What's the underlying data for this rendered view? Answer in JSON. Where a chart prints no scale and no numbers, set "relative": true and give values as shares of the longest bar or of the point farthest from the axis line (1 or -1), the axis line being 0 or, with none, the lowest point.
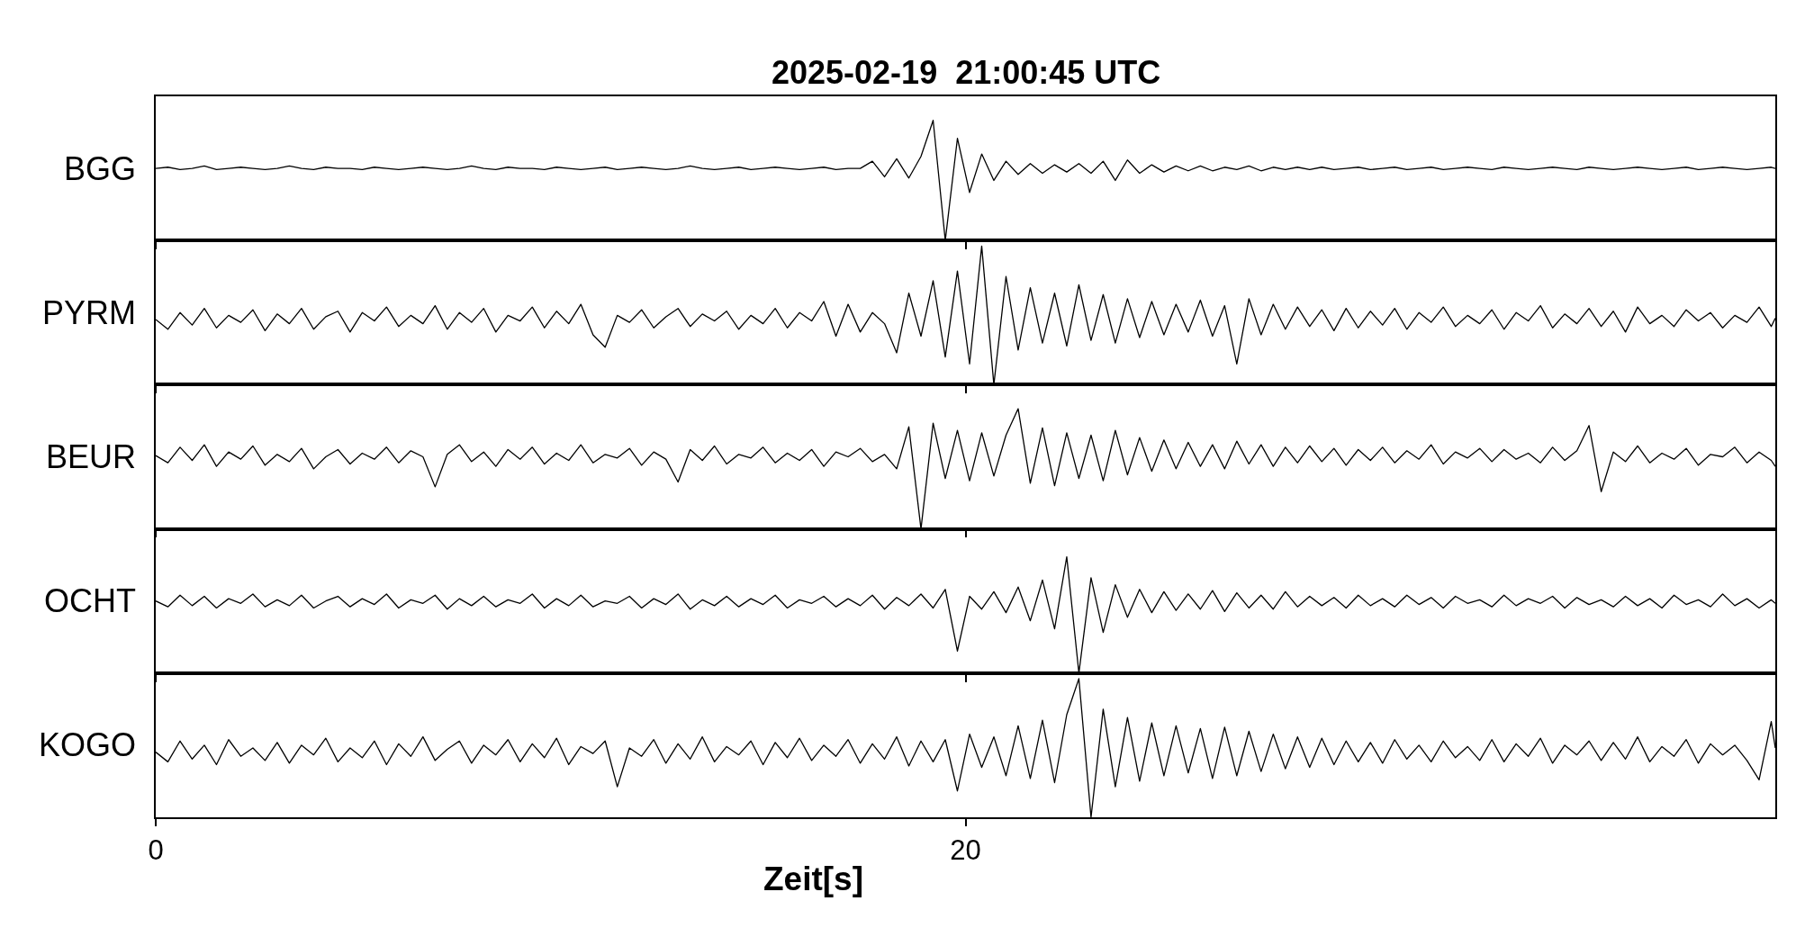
{
  "chart_data": [
    {
      "type": "line",
      "relative": true,
      "title": "2025-02-19  21:00:45 UTC",
      "ylabel": "BGG",
      "color": "#000000",
      "xlim": [
        0,
        40
      ],
      "xticks": [
        0,
        20
      ],
      "tick_labels": false,
      "x": [
        0,
        0.3,
        0.6,
        0.9,
        1.2,
        1.5,
        1.8,
        2.1,
        2.4,
        2.7,
        3,
        3.3,
        3.6,
        3.9,
        4.2,
        4.5,
        4.8,
        5.1,
        5.4,
        5.7,
        6,
        6.3,
        6.6,
        6.9,
        7.2,
        7.5,
        7.8,
        8.1,
        8.4,
        8.7,
        9,
        9.3,
        9.6,
        9.9,
        10.2,
        10.5,
        10.8,
        11.1,
        11.4,
        11.7,
        12,
        12.3,
        12.6,
        12.9,
        13.2,
        13.5,
        13.8,
        14.1,
        14.4,
        14.7,
        15,
        15.3,
        15.6,
        15.9,
        16.2,
        16.5,
        16.8,
        17.1,
        17.4,
        17.7,
        18,
        18.3,
        18.6,
        18.9,
        19.2,
        19.5,
        19.8,
        20.1,
        20.4,
        20.7,
        21,
        21.3,
        21.6,
        21.9,
        22.2,
        22.5,
        22.8,
        23.1,
        23.4,
        23.7,
        24,
        24.3,
        24.6,
        24.9,
        25.2,
        25.5,
        25.8,
        26.1,
        26.4,
        26.7,
        27,
        27.3,
        27.6,
        27.9,
        28.2,
        28.5,
        28.8,
        29.1,
        29.4,
        29.7,
        30,
        30.3,
        30.6,
        30.9,
        31.2,
        31.5,
        31.8,
        32.1,
        32.4,
        32.7,
        33,
        33.3,
        33.6,
        33.9,
        34.2,
        34.5,
        34.8,
        35.1,
        35.4,
        35.7,
        36,
        36.3,
        36.6,
        36.9,
        37.2,
        37.5,
        37.8,
        38.1,
        38.4,
        38.7,
        39,
        39.3,
        39.6,
        39.9,
        40
      ],
      "values": [
        0.6,
        0.61,
        0.59,
        0.6,
        0.62,
        0.59,
        0.6,
        0.61,
        0.6,
        0.59,
        0.6,
        0.62,
        0.6,
        0.59,
        0.61,
        0.6,
        0.6,
        0.59,
        0.61,
        0.6,
        0.59,
        0.6,
        0.61,
        0.6,
        0.59,
        0.6,
        0.62,
        0.6,
        0.59,
        0.61,
        0.6,
        0.6,
        0.59,
        0.61,
        0.6,
        0.59,
        0.6,
        0.61,
        0.59,
        0.6,
        0.61,
        0.6,
        0.59,
        0.6,
        0.62,
        0.6,
        0.59,
        0.6,
        0.61,
        0.59,
        0.6,
        0.61,
        0.6,
        0.59,
        0.6,
        0.61,
        0.59,
        0.6,
        0.6,
        0.66,
        0.53,
        0.68,
        0.52,
        0.7,
        1.0,
        0.0,
        0.85,
        0.4,
        0.72,
        0.5,
        0.66,
        0.55,
        0.64,
        0.56,
        0.63,
        0.57,
        0.64,
        0.56,
        0.66,
        0.5,
        0.67,
        0.56,
        0.63,
        0.57,
        0.62,
        0.58,
        0.62,
        0.58,
        0.61,
        0.59,
        0.62,
        0.58,
        0.61,
        0.59,
        0.61,
        0.59,
        0.61,
        0.59,
        0.6,
        0.61,
        0.59,
        0.6,
        0.61,
        0.59,
        0.6,
        0.61,
        0.59,
        0.6,
        0.61,
        0.6,
        0.59,
        0.61,
        0.6,
        0.59,
        0.6,
        0.61,
        0.6,
        0.59,
        0.61,
        0.6,
        0.59,
        0.6,
        0.61,
        0.6,
        0.59,
        0.6,
        0.61,
        0.59,
        0.6,
        0.61,
        0.6,
        0.59,
        0.6,
        0.61,
        0.6
      ]
    },
    {
      "type": "line",
      "relative": true,
      "ylabel": "PYRM",
      "color": "#000000",
      "xlim": [
        0,
        40
      ],
      "xticks": [
        0,
        20
      ],
      "tick_labels": false,
      "x": [
        0,
        0.3,
        0.6,
        0.9,
        1.2,
        1.5,
        1.8,
        2.1,
        2.4,
        2.7,
        3,
        3.3,
        3.6,
        3.9,
        4.2,
        4.5,
        4.8,
        5.1,
        5.4,
        5.7,
        6,
        6.3,
        6.6,
        6.9,
        7.2,
        7.5,
        7.8,
        8.1,
        8.4,
        8.7,
        9,
        9.3,
        9.6,
        9.9,
        10.2,
        10.5,
        10.8,
        11.1,
        11.4,
        11.7,
        12,
        12.3,
        12.6,
        12.9,
        13.2,
        13.5,
        13.8,
        14.1,
        14.4,
        14.7,
        15,
        15.3,
        15.6,
        15.9,
        16.2,
        16.5,
        16.8,
        17.1,
        17.4,
        17.7,
        18,
        18.3,
        18.6,
        18.9,
        19.2,
        19.5,
        19.8,
        20.1,
        20.4,
        20.7,
        21,
        21.3,
        21.6,
        21.9,
        22.2,
        22.5,
        22.8,
        23.1,
        23.4,
        23.7,
        24,
        24.3,
        24.6,
        24.9,
        25.2,
        25.5,
        25.8,
        26.1,
        26.4,
        26.7,
        27,
        27.3,
        27.6,
        27.9,
        28.2,
        28.5,
        28.8,
        29.1,
        29.4,
        29.7,
        30,
        30.3,
        30.6,
        30.9,
        31.2,
        31.5,
        31.8,
        32.1,
        32.4,
        32.7,
        33,
        33.3,
        33.6,
        33.9,
        34.2,
        34.5,
        34.8,
        35.1,
        35.4,
        35.7,
        36,
        36.3,
        36.6,
        36.9,
        37.2,
        37.5,
        37.8,
        38.1,
        38.4,
        38.7,
        39,
        39.3,
        39.6,
        39.9,
        40
      ],
      "values": [
        0.47,
        0.4,
        0.52,
        0.43,
        0.55,
        0.41,
        0.5,
        0.45,
        0.54,
        0.39,
        0.51,
        0.44,
        0.55,
        0.4,
        0.49,
        0.53,
        0.38,
        0.52,
        0.46,
        0.56,
        0.42,
        0.5,
        0.44,
        0.57,
        0.4,
        0.52,
        0.45,
        0.55,
        0.38,
        0.5,
        0.46,
        0.56,
        0.41,
        0.53,
        0.44,
        0.58,
        0.36,
        0.27,
        0.5,
        0.45,
        0.54,
        0.41,
        0.49,
        0.55,
        0.42,
        0.51,
        0.46,
        0.53,
        0.4,
        0.5,
        0.44,
        0.55,
        0.41,
        0.52,
        0.46,
        0.6,
        0.35,
        0.58,
        0.38,
        0.52,
        0.44,
        0.23,
        0.66,
        0.35,
        0.75,
        0.2,
        0.82,
        0.15,
        1.0,
        0.0,
        0.78,
        0.25,
        0.7,
        0.3,
        0.66,
        0.28,
        0.72,
        0.32,
        0.65,
        0.3,
        0.62,
        0.34,
        0.6,
        0.36,
        0.58,
        0.38,
        0.61,
        0.35,
        0.57,
        0.15,
        0.62,
        0.36,
        0.58,
        0.4,
        0.56,
        0.42,
        0.54,
        0.39,
        0.55,
        0.41,
        0.53,
        0.43,
        0.55,
        0.4,
        0.52,
        0.45,
        0.56,
        0.42,
        0.5,
        0.44,
        0.54,
        0.4,
        0.52,
        0.46,
        0.57,
        0.41,
        0.51,
        0.44,
        0.55,
        0.42,
        0.53,
        0.38,
        0.56,
        0.44,
        0.5,
        0.42,
        0.54,
        0.46,
        0.52,
        0.41,
        0.5,
        0.45,
        0.56,
        0.42,
        0.48
      ]
    },
    {
      "type": "line",
      "relative": true,
      "ylabel": "BEUR",
      "color": "#000000",
      "xlim": [
        0,
        40
      ],
      "xticks": [
        0,
        20
      ],
      "tick_labels": false,
      "x": [
        0,
        0.3,
        0.6,
        0.9,
        1.2,
        1.5,
        1.8,
        2.1,
        2.4,
        2.7,
        3,
        3.3,
        3.6,
        3.9,
        4.2,
        4.5,
        4.8,
        5.1,
        5.4,
        5.7,
        6,
        6.3,
        6.6,
        6.9,
        7.2,
        7.5,
        7.8,
        8.1,
        8.4,
        8.7,
        9,
        9.3,
        9.6,
        9.9,
        10.2,
        10.5,
        10.8,
        11.1,
        11.4,
        11.7,
        12,
        12.3,
        12.6,
        12.9,
        13.2,
        13.5,
        13.8,
        14.1,
        14.4,
        14.7,
        15,
        15.3,
        15.6,
        15.9,
        16.2,
        16.5,
        16.8,
        17.1,
        17.4,
        17.7,
        18,
        18.3,
        18.6,
        18.9,
        19.2,
        19.5,
        19.8,
        20.1,
        20.4,
        20.7,
        21,
        21.3,
        21.6,
        21.9,
        22.2,
        22.5,
        22.8,
        23.1,
        23.4,
        23.7,
        24,
        24.3,
        24.6,
        24.9,
        25.2,
        25.5,
        25.8,
        26.1,
        26.4,
        26.7,
        27,
        27.3,
        27.6,
        27.9,
        28.2,
        28.5,
        28.8,
        29.1,
        29.4,
        29.7,
        30,
        30.3,
        30.6,
        30.9,
        31.2,
        31.5,
        31.8,
        32.1,
        32.4,
        32.7,
        33,
        33.3,
        33.6,
        33.9,
        34.2,
        34.5,
        34.8,
        35.1,
        35.4,
        35.7,
        36,
        36.3,
        36.6,
        36.9,
        37.2,
        37.5,
        37.8,
        38.1,
        38.4,
        38.7,
        39,
        39.3,
        39.6,
        39.9,
        40
      ],
      "values": [
        0.61,
        0.55,
        0.68,
        0.57,
        0.7,
        0.52,
        0.64,
        0.58,
        0.69,
        0.53,
        0.62,
        0.56,
        0.67,
        0.5,
        0.6,
        0.66,
        0.54,
        0.63,
        0.58,
        0.68,
        0.55,
        0.65,
        0.6,
        0.35,
        0.62,
        0.7,
        0.56,
        0.64,
        0.52,
        0.66,
        0.58,
        0.68,
        0.54,
        0.63,
        0.57,
        0.7,
        0.55,
        0.62,
        0.59,
        0.67,
        0.53,
        0.64,
        0.58,
        0.39,
        0.66,
        0.57,
        0.69,
        0.54,
        0.62,
        0.59,
        0.68,
        0.55,
        0.63,
        0.57,
        0.66,
        0.52,
        0.64,
        0.6,
        0.67,
        0.56,
        0.62,
        0.5,
        0.85,
        0.0,
        0.88,
        0.42,
        0.82,
        0.4,
        0.8,
        0.44,
        0.78,
        1.0,
        0.38,
        0.84,
        0.36,
        0.8,
        0.42,
        0.78,
        0.4,
        0.82,
        0.45,
        0.76,
        0.48,
        0.74,
        0.5,
        0.72,
        0.52,
        0.7,
        0.5,
        0.73,
        0.54,
        0.7,
        0.52,
        0.68,
        0.55,
        0.69,
        0.56,
        0.67,
        0.53,
        0.66,
        0.57,
        0.68,
        0.55,
        0.65,
        0.58,
        0.7,
        0.54,
        0.64,
        0.59,
        0.67,
        0.56,
        0.66,
        0.58,
        0.63,
        0.55,
        0.68,
        0.57,
        0.65,
        0.86,
        0.31,
        0.64,
        0.56,
        0.69,
        0.55,
        0.63,
        0.58,
        0.67,
        0.53,
        0.62,
        0.6,
        0.68,
        0.55,
        0.64,
        0.57,
        0.52
      ]
    },
    {
      "type": "line",
      "relative": true,
      "ylabel": "OCHT",
      "color": "#000000",
      "xlim": [
        0,
        40
      ],
      "xticks": [
        0,
        20
      ],
      "tick_labels": false,
      "x": [
        0,
        0.3,
        0.6,
        0.9,
        1.2,
        1.5,
        1.8,
        2.1,
        2.4,
        2.7,
        3,
        3.3,
        3.6,
        3.9,
        4.2,
        4.5,
        4.8,
        5.1,
        5.4,
        5.7,
        6,
        6.3,
        6.6,
        6.9,
        7.2,
        7.5,
        7.8,
        8.1,
        8.4,
        8.7,
        9,
        9.3,
        9.6,
        9.9,
        10.2,
        10.5,
        10.8,
        11.1,
        11.4,
        11.7,
        12,
        12.3,
        12.6,
        12.9,
        13.2,
        13.5,
        13.8,
        14.1,
        14.4,
        14.7,
        15,
        15.3,
        15.6,
        15.9,
        16.2,
        16.5,
        16.8,
        17.1,
        17.4,
        17.7,
        18,
        18.3,
        18.6,
        18.9,
        19.2,
        19.5,
        19.8,
        20.1,
        20.4,
        20.7,
        21,
        21.3,
        21.6,
        21.9,
        22.2,
        22.5,
        22.8,
        23.1,
        23.4,
        23.7,
        24,
        24.3,
        24.6,
        24.9,
        25.2,
        25.5,
        25.8,
        26.1,
        26.4,
        26.7,
        27,
        27.3,
        27.6,
        27.9,
        28.2,
        28.5,
        28.8,
        29.1,
        29.4,
        29.7,
        30,
        30.3,
        30.6,
        30.9,
        31.2,
        31.5,
        31.8,
        32.1,
        32.4,
        32.7,
        33,
        33.3,
        33.6,
        33.9,
        34.2,
        34.5,
        34.8,
        35.1,
        35.4,
        35.7,
        36,
        36.3,
        36.6,
        36.9,
        37.2,
        37.5,
        37.8,
        38.1,
        38.4,
        38.7,
        39,
        39.3,
        39.6,
        39.9,
        40
      ],
      "values": [
        0.62,
        0.57,
        0.67,
        0.58,
        0.66,
        0.56,
        0.64,
        0.6,
        0.68,
        0.57,
        0.63,
        0.58,
        0.67,
        0.56,
        0.62,
        0.66,
        0.57,
        0.64,
        0.59,
        0.68,
        0.56,
        0.63,
        0.6,
        0.67,
        0.55,
        0.64,
        0.58,
        0.66,
        0.57,
        0.63,
        0.6,
        0.68,
        0.56,
        0.64,
        0.58,
        0.67,
        0.57,
        0.62,
        0.6,
        0.66,
        0.56,
        0.64,
        0.59,
        0.68,
        0.55,
        0.63,
        0.58,
        0.66,
        0.57,
        0.64,
        0.59,
        0.67,
        0.56,
        0.63,
        0.6,
        0.66,
        0.57,
        0.64,
        0.58,
        0.67,
        0.55,
        0.65,
        0.58,
        0.68,
        0.56,
        0.72,
        0.19,
        0.66,
        0.55,
        0.7,
        0.52,
        0.74,
        0.45,
        0.8,
        0.38,
        1.0,
        0.0,
        0.82,
        0.35,
        0.76,
        0.48,
        0.72,
        0.52,
        0.7,
        0.54,
        0.68,
        0.55,
        0.71,
        0.53,
        0.69,
        0.56,
        0.67,
        0.55,
        0.7,
        0.57,
        0.66,
        0.58,
        0.65,
        0.56,
        0.67,
        0.58,
        0.64,
        0.57,
        0.67,
        0.59,
        0.65,
        0.56,
        0.66,
        0.6,
        0.63,
        0.57,
        0.67,
        0.58,
        0.64,
        0.6,
        0.66,
        0.56,
        0.65,
        0.59,
        0.63,
        0.57,
        0.66,
        0.58,
        0.64,
        0.56,
        0.67,
        0.59,
        0.63,
        0.57,
        0.68,
        0.58,
        0.64,
        0.56,
        0.63,
        0.6
      ]
    },
    {
      "type": "line",
      "relative": true,
      "ylabel": "KOGO",
      "xlabel": "Zeit[s]",
      "color": "#000000",
      "xlim": [
        0,
        40
      ],
      "xticks": [
        0,
        20
      ],
      "tick_labels": "x",
      "x": [
        0,
        0.3,
        0.6,
        0.9,
        1.2,
        1.5,
        1.8,
        2.1,
        2.4,
        2.7,
        3,
        3.3,
        3.6,
        3.9,
        4.2,
        4.5,
        4.8,
        5.1,
        5.4,
        5.7,
        6,
        6.3,
        6.6,
        6.9,
        7.2,
        7.5,
        7.8,
        8.1,
        8.4,
        8.7,
        9,
        9.3,
        9.6,
        9.9,
        10.2,
        10.5,
        10.8,
        11.1,
        11.4,
        11.7,
        12,
        12.3,
        12.6,
        12.9,
        13.2,
        13.5,
        13.8,
        14.1,
        14.4,
        14.7,
        15,
        15.3,
        15.6,
        15.9,
        16.2,
        16.5,
        16.8,
        17.1,
        17.4,
        17.7,
        18,
        18.3,
        18.6,
        18.9,
        19.2,
        19.5,
        19.8,
        20.1,
        20.4,
        20.7,
        21,
        21.3,
        21.6,
        21.9,
        22.2,
        22.5,
        22.8,
        23.1,
        23.4,
        23.7,
        24,
        24.3,
        24.6,
        24.9,
        25.2,
        25.5,
        25.8,
        26.1,
        26.4,
        26.7,
        27,
        27.3,
        27.6,
        27.9,
        28.2,
        28.5,
        28.8,
        29.1,
        29.4,
        29.7,
        30,
        30.3,
        30.6,
        30.9,
        31.2,
        31.5,
        31.8,
        32.1,
        32.4,
        32.7,
        33,
        33.3,
        33.6,
        33.9,
        34.2,
        34.5,
        34.8,
        35.1,
        35.4,
        35.7,
        36,
        36.3,
        36.6,
        36.9,
        37.2,
        37.5,
        37.8,
        38.1,
        38.4,
        38.7,
        39,
        39.3,
        39.6,
        39.9,
        40
      ],
      "values": [
        0.47,
        0.4,
        0.55,
        0.42,
        0.52,
        0.38,
        0.56,
        0.44,
        0.5,
        0.41,
        0.54,
        0.39,
        0.52,
        0.45,
        0.57,
        0.4,
        0.5,
        0.43,
        0.55,
        0.38,
        0.53,
        0.44,
        0.58,
        0.41,
        0.49,
        0.55,
        0.39,
        0.52,
        0.45,
        0.56,
        0.4,
        0.53,
        0.43,
        0.57,
        0.38,
        0.51,
        0.46,
        0.55,
        0.22,
        0.5,
        0.44,
        0.56,
        0.39,
        0.53,
        0.42,
        0.58,
        0.4,
        0.51,
        0.45,
        0.55,
        0.38,
        0.54,
        0.43,
        0.57,
        0.41,
        0.52,
        0.44,
        0.56,
        0.39,
        0.53,
        0.42,
        0.58,
        0.37,
        0.55,
        0.4,
        0.56,
        0.19,
        0.6,
        0.36,
        0.58,
        0.3,
        0.66,
        0.28,
        0.7,
        0.25,
        0.74,
        1.0,
        0.0,
        0.78,
        0.22,
        0.72,
        0.26,
        0.68,
        0.3,
        0.66,
        0.32,
        0.64,
        0.28,
        0.65,
        0.3,
        0.62,
        0.33,
        0.6,
        0.35,
        0.58,
        0.36,
        0.57,
        0.38,
        0.55,
        0.4,
        0.54,
        0.39,
        0.56,
        0.42,
        0.52,
        0.4,
        0.55,
        0.43,
        0.51,
        0.41,
        0.56,
        0.4,
        0.53,
        0.44,
        0.57,
        0.39,
        0.52,
        0.45,
        0.55,
        0.41,
        0.54,
        0.42,
        0.58,
        0.4,
        0.51,
        0.44,
        0.56,
        0.39,
        0.53,
        0.45,
        0.52,
        0.41,
        0.27,
        0.69,
        0.5
      ]
    }
  ]
}
